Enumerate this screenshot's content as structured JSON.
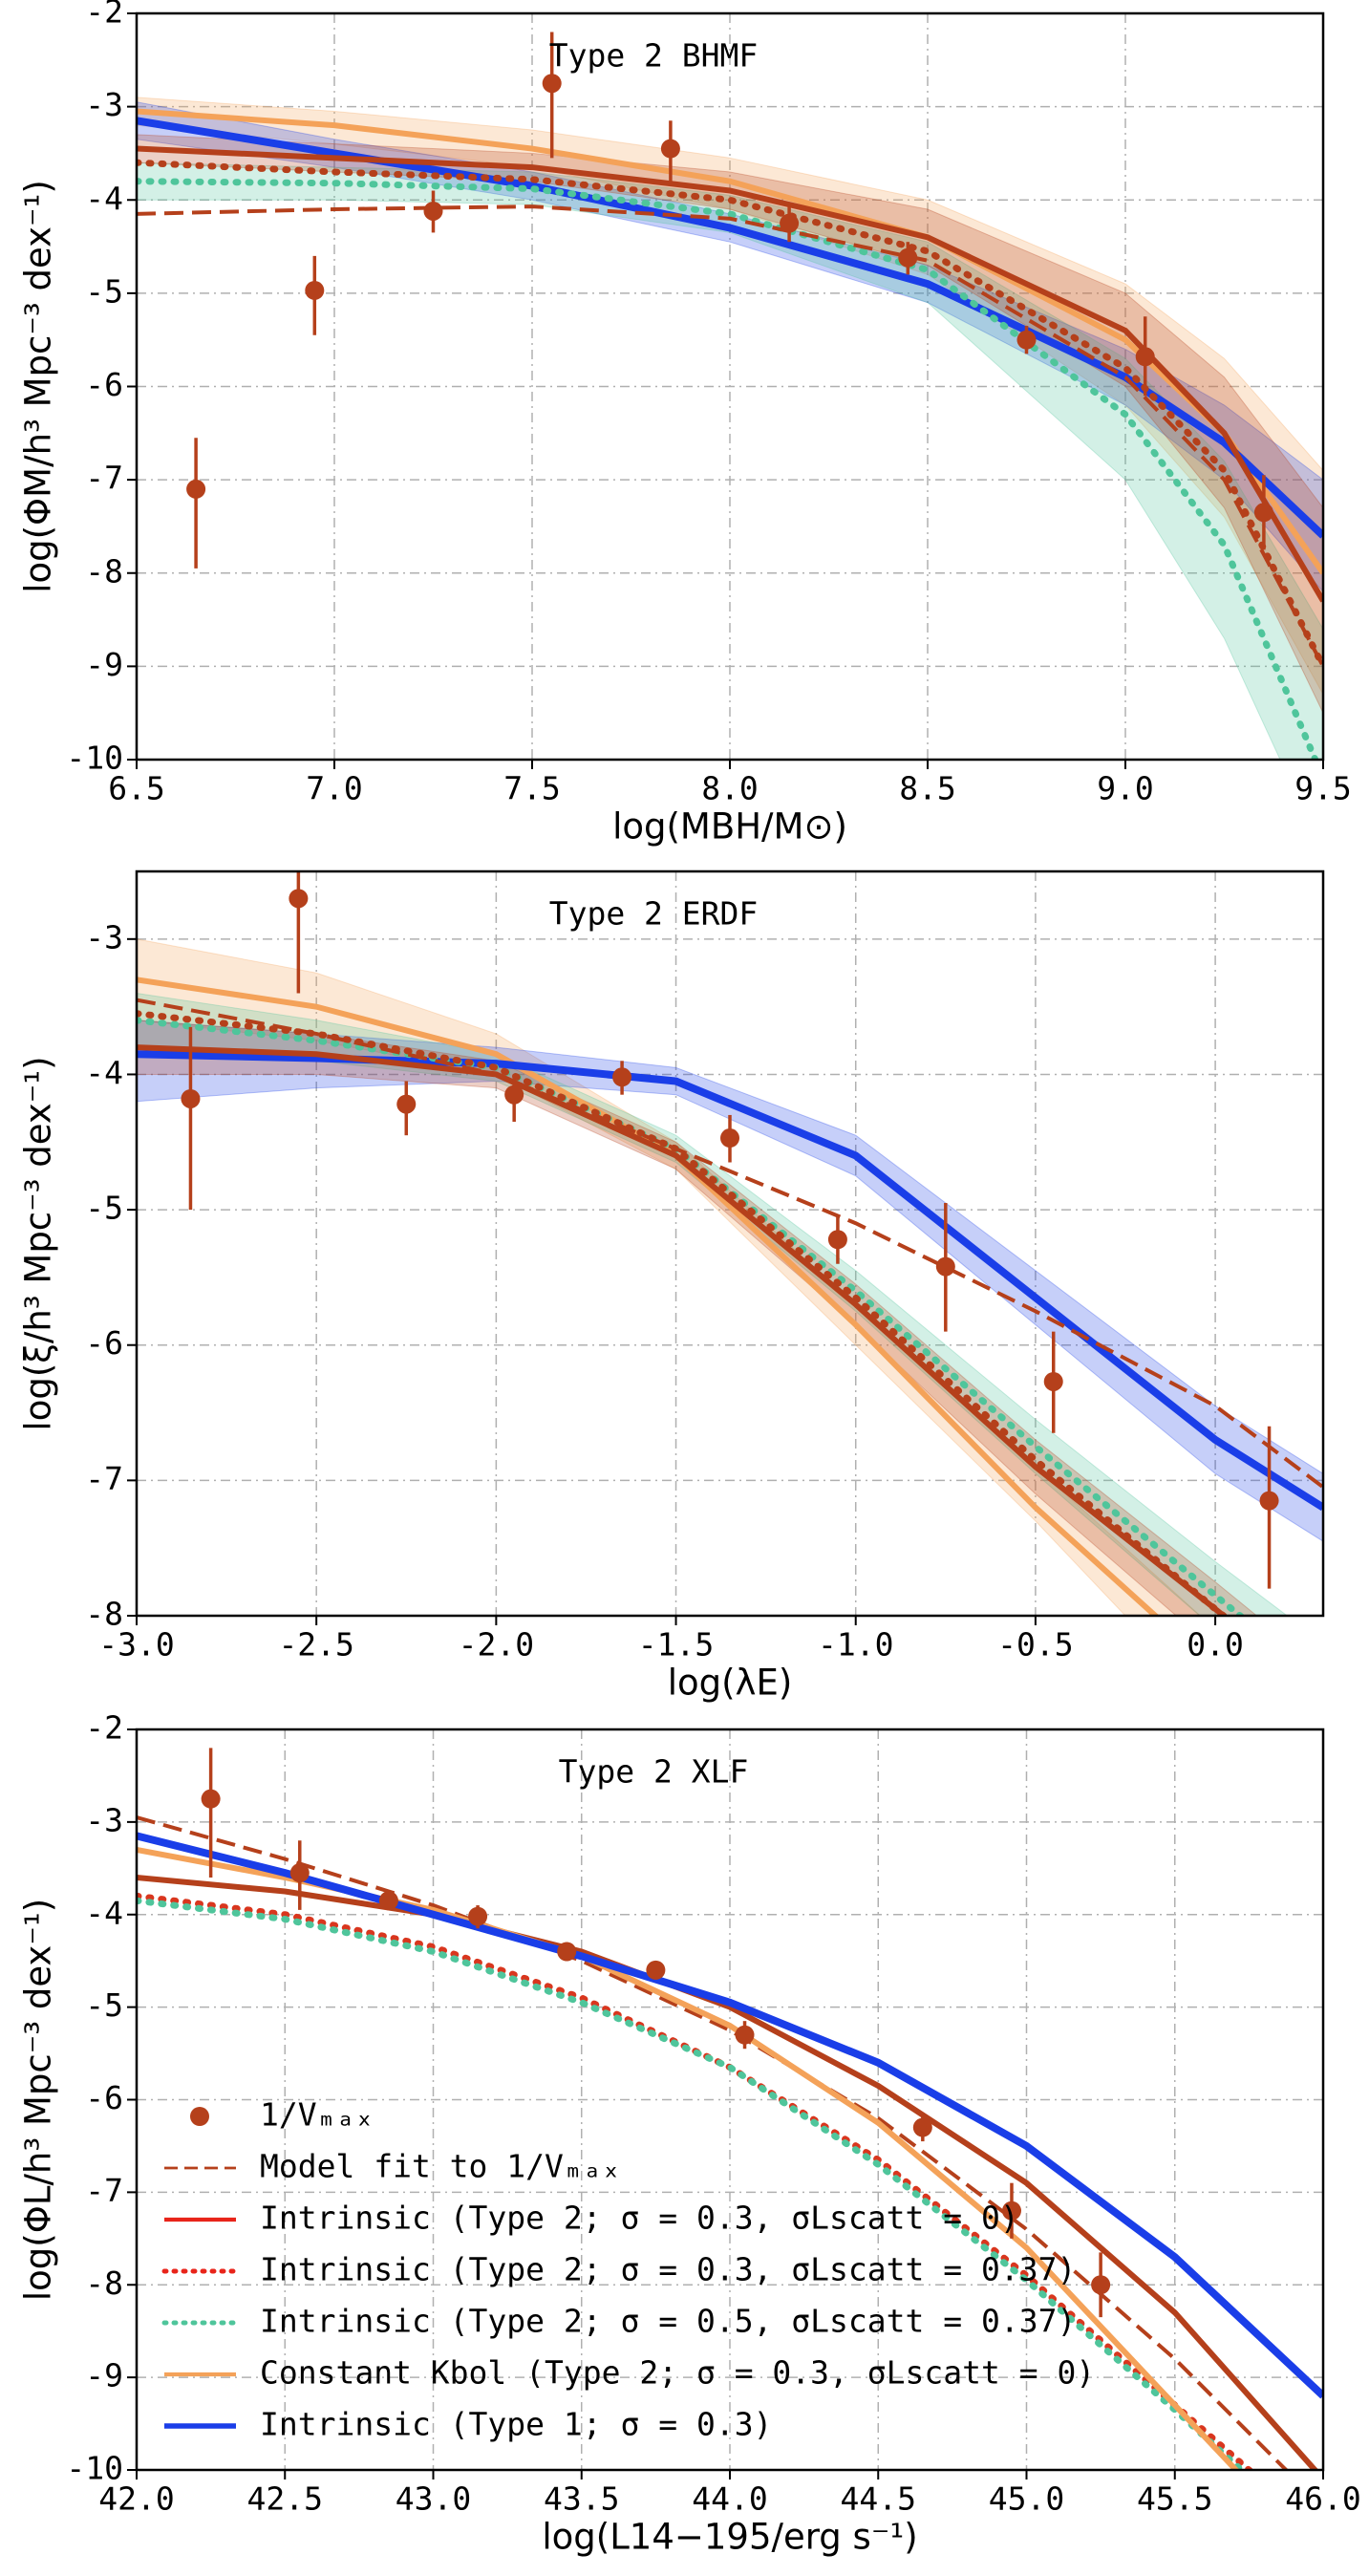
{
  "chart_data": [
    {
      "type": "line",
      "title": "Type 2 BHMF",
      "xlabel": "log(MBH/M⊙)",
      "ylabel": "log(ΦM/h³ Mpc⁻³ dex⁻¹)",
      "xlim": [
        6.5,
        9.5
      ],
      "ylim": [
        -10,
        -2
      ],
      "grid": true,
      "xticks": [
        6.5,
        {
          "value": 7,
          "label": "7.0"
        },
        7.5,
        {
          "value": 8,
          "label": "8.0"
        },
        8.5,
        {
          "value": 9,
          "label": "9.0"
        },
        9.5
      ],
      "yticks": [
        -10,
        -9,
        -8,
        -7,
        -6,
        -5,
        -4,
        -3,
        -2
      ],
      "x": [
        6.5,
        7.0,
        7.5,
        8.0,
        8.5,
        9.0,
        9.25,
        9.5
      ],
      "series": [
        {
          "color": "#f4a259",
          "dash": "solid",
          "width": 6,
          "values": [
            -3.05,
            -3.2,
            -3.45,
            -3.8,
            -4.4,
            -5.5,
            -6.5,
            -8.0
          ],
          "lower": [
            -3.2,
            -3.4,
            -3.65,
            -4.1,
            -4.8,
            -6.2,
            -7.4,
            -9.3
          ],
          "upper": [
            -2.9,
            -3.05,
            -3.25,
            -3.55,
            -4.0,
            -4.9,
            -5.7,
            -6.9
          ]
        },
        {
          "color": "#1a3ee8",
          "dash": "solid",
          "width": 8,
          "values": [
            -3.15,
            -3.5,
            -3.85,
            -4.3,
            -4.9,
            -5.9,
            -6.6,
            -7.6
          ],
          "lower": [
            -3.35,
            -3.65,
            -4.0,
            -4.45,
            -5.1,
            -6.2,
            -7.0,
            -8.2
          ],
          "upper": [
            -2.95,
            -3.35,
            -3.7,
            -4.15,
            -4.7,
            -5.6,
            -6.2,
            -7.0
          ]
        },
        {
          "color": "#4fc59b",
          "dash": "dotted",
          "width": 7,
          "values": [
            -3.8,
            -3.82,
            -3.88,
            -4.15,
            -4.75,
            -6.3,
            -7.7,
            -10.2
          ],
          "lower": [
            -4.0,
            -4.0,
            -4.05,
            -4.35,
            -5.1,
            -7.0,
            -8.7,
            -11
          ],
          "upper": [
            -3.6,
            -3.65,
            -3.7,
            -3.95,
            -4.45,
            -5.7,
            -6.8,
            -8.6
          ]
        },
        {
          "color": "#b5401b",
          "dash": "dotted",
          "width": 7,
          "values": [
            -3.6,
            -3.7,
            -3.78,
            -4.0,
            -4.55,
            -5.8,
            -6.9,
            -9.0
          ]
        },
        {
          "color": "#b5401b",
          "dash": "dashed",
          "width": 4,
          "values": [
            -4.15,
            -4.1,
            -4.07,
            -4.2,
            -4.65,
            -5.9,
            -7.0,
            -9.0
          ]
        },
        {
          "color": "#b5401b",
          "dash": "solid",
          "width": 6,
          "values": [
            -3.45,
            -3.55,
            -3.65,
            -3.9,
            -4.4,
            -5.4,
            -6.5,
            -8.3
          ],
          "lower": [
            -3.6,
            -3.7,
            -3.8,
            -4.1,
            -4.7,
            -6.0,
            -7.3,
            -9.5
          ],
          "upper": [
            -3.3,
            -3.4,
            -3.5,
            -3.7,
            -4.1,
            -5.0,
            -5.9,
            -7.3
          ]
        }
      ],
      "points": {
        "color": "#b5401b",
        "x": [
          6.65,
          6.95,
          7.25,
          7.55,
          7.85,
          8.15,
          8.45,
          8.75,
          9.05,
          9.35
        ],
        "values": [
          -7.1,
          -4.97,
          -4.12,
          -2.75,
          -3.45,
          -4.25,
          -4.62,
          -5.5,
          -5.68,
          -7.35
        ],
        "yerr_low": [
          0.85,
          0.48,
          0.23,
          0.8,
          0.35,
          0.2,
          0.18,
          0.15,
          0.42,
          0.4
        ],
        "yerr_high": [
          0.55,
          0.37,
          0.22,
          0.55,
          0.3,
          0.2,
          0.17,
          0.15,
          0.43,
          0.4
        ]
      }
    },
    {
      "type": "line",
      "title": "Type 2 ERDF",
      "xlabel": "log(λE)",
      "ylabel": "log(ξ/h³ Mpc⁻³ dex⁻¹)",
      "xlim": [
        -3,
        0.3
      ],
      "ylim": [
        -8,
        -2.5
      ],
      "grid": true,
      "xticks": [
        {
          "value": -3,
          "label": "-3.0"
        },
        -2.5,
        {
          "value": -2,
          "label": "-2.0"
        },
        -1.5,
        {
          "value": -1,
          "label": "-1.0"
        },
        -0.5,
        {
          "value": 0,
          "label": "0.0"
        }
      ],
      "yticks": [
        -8,
        -7,
        -6,
        -5,
        -4,
        -3
      ],
      "x": [
        -3,
        -2.5,
        -2,
        -1.5,
        -1,
        -0.5,
        0,
        0.3
      ],
      "series": [
        {
          "color": "#f4a259",
          "dash": "solid",
          "width": 6,
          "values": [
            -3.3,
            -3.5,
            -3.85,
            -4.6,
            -5.85,
            -7.2,
            -8.4,
            -9.1
          ],
          "lower": [
            -3.6,
            -3.75,
            -4.0,
            -4.7,
            -6.0,
            -7.3,
            -8.7,
            -9.5
          ],
          "upper": [
            -3.0,
            -3.25,
            -3.7,
            -4.5,
            -5.7,
            -6.9,
            -8.1,
            -8.8
          ]
        },
        {
          "color": "#1a3ee8",
          "dash": "solid",
          "width": 8,
          "values": [
            -3.85,
            -3.88,
            -3.92,
            -4.05,
            -4.6,
            -5.65,
            -6.7,
            -7.2
          ],
          "lower": [
            -4.2,
            -4.1,
            -4.05,
            -4.15,
            -4.75,
            -5.85,
            -6.95,
            -7.45
          ],
          "upper": [
            -3.6,
            -3.7,
            -3.8,
            -3.95,
            -4.45,
            -5.45,
            -6.45,
            -6.95
          ]
        },
        {
          "color": "#4fc59b",
          "dash": "dotted",
          "width": 7,
          "values": [
            -3.6,
            -3.75,
            -3.95,
            -4.55,
            -5.6,
            -6.75,
            -7.85,
            -8.5
          ],
          "lower": [
            -3.8,
            -3.9,
            -4.05,
            -4.65,
            -5.75,
            -6.95,
            -8.1,
            -8.8
          ],
          "upper": [
            -3.4,
            -3.6,
            -3.85,
            -4.45,
            -5.45,
            -6.55,
            -7.6,
            -8.2
          ]
        },
        {
          "color": "#b5401b",
          "dash": "dotted",
          "width": 7,
          "values": [
            -3.55,
            -3.7,
            -3.95,
            -4.55,
            -5.65,
            -6.85,
            -7.95,
            -8.6
          ]
        },
        {
          "color": "#b5401b",
          "dash": "dashed",
          "width": 4,
          "values": [
            -3.45,
            -3.7,
            -4.0,
            -4.55,
            -5.1,
            -5.75,
            -6.45,
            -7.05
          ]
        },
        {
          "color": "#b5401b",
          "dash": "solid",
          "width": 6,
          "values": [
            -3.8,
            -3.85,
            -4.0,
            -4.6,
            -5.7,
            -6.9,
            -7.95,
            -8.6
          ],
          "lower": [
            -4.0,
            -4.0,
            -4.1,
            -4.7,
            -5.85,
            -7.1,
            -8.25,
            -8.9
          ],
          "upper": [
            -3.6,
            -3.7,
            -3.9,
            -4.5,
            -5.55,
            -6.7,
            -7.75,
            -8.4
          ]
        }
      ],
      "points": {
        "color": "#b5401b",
        "x": [
          -2.85,
          -2.55,
          -2.25,
          -1.95,
          -1.65,
          -1.35,
          -1.05,
          -0.75,
          -0.45,
          0.15
        ],
        "values": [
          -4.18,
          -2.7,
          -4.22,
          -4.15,
          -4.02,
          -4.47,
          -5.22,
          -5.42,
          -6.27,
          -7.15
        ],
        "yerr_low": [
          0.82,
          0.7,
          0.23,
          0.2,
          0.13,
          0.18,
          0.18,
          0.48,
          0.38,
          0.65
        ],
        "yerr_high": [
          0.53,
          0.4,
          0.17,
          0.15,
          0.12,
          0.17,
          0.17,
          0.47,
          0.37,
          0.55
        ]
      }
    },
    {
      "type": "line",
      "title": "Type 2 XLF",
      "xlabel": "log(L14−195/erg s⁻¹)",
      "ylabel": "log(ΦL/h³ Mpc⁻³ dex⁻¹)",
      "xlim": [
        42,
        46
      ],
      "ylim": [
        -10,
        -2
      ],
      "grid": true,
      "legend": "lower left",
      "xticks": [
        {
          "value": 42,
          "label": "42.0"
        },
        42.5,
        {
          "value": 43,
          "label": "43.0"
        },
        43.5,
        {
          "value": 44,
          "label": "44.0"
        },
        44.5,
        {
          "value": 45,
          "label": "45.0"
        },
        45.5,
        {
          "value": 46,
          "label": "46.0"
        }
      ],
      "yticks": [
        -10,
        -9,
        -8,
        -7,
        -6,
        -5,
        -4,
        -3,
        -2
      ],
      "x": [
        42,
        42.5,
        43,
        43.5,
        44,
        44.5,
        45,
        45.5,
        46
      ],
      "points": {
        "name": "1/Vₘₐₓ",
        "color": "#b5401b",
        "x": [
          42.25,
          42.55,
          42.85,
          43.15,
          43.45,
          43.75,
          44.05,
          44.65,
          44.95,
          45.25
        ],
        "values": [
          -2.75,
          -3.55,
          -3.85,
          -4.02,
          -4.4,
          -4.6,
          -5.3,
          -6.3,
          -7.2,
          -8.0
        ],
        "yerr_low": [
          0.85,
          0.4,
          0.1,
          0.13,
          0.1,
          0.1,
          0.15,
          0.15,
          0.3,
          0.35
        ],
        "yerr_high": [
          0.55,
          0.35,
          0.1,
          0.12,
          0.1,
          0.1,
          0.15,
          0.15,
          0.3,
          0.35
        ]
      },
      "series": [
        {
          "name": "Model fit to 1/Vₘₐₓ",
          "color": "#b5401b",
          "dash": "dashed",
          "width": 4,
          "values": [
            -2.95,
            -3.4,
            -3.9,
            -4.5,
            -5.25,
            -6.2,
            -7.4,
            -8.8,
            -10.4
          ]
        },
        {
          "name": "Intrinsic (Type 2; σ = 0.3, σLscatt = 0)",
          "color": "#b5401b",
          "legend_color": "#e8241a",
          "dash": "solid",
          "width": 6,
          "values": [
            -3.6,
            -3.75,
            -4.0,
            -4.4,
            -5.0,
            -5.85,
            -6.9,
            -8.3,
            -10.1
          ]
        },
        {
          "name": "Intrinsic (Type 2; σ = 0.3, σLscatt = 0.37)",
          "color": "#d9361e",
          "legend_color": "#e8241a",
          "dash": "dotted",
          "width": 7,
          "values": [
            -3.8,
            -4.0,
            -4.35,
            -4.9,
            -5.65,
            -6.65,
            -7.9,
            -9.3,
            -10.7
          ]
        },
        {
          "name": "Intrinsic (Type 2; σ = 0.5, σLscatt = 0.37)",
          "color": "#4fc59b",
          "dash": "dotted",
          "width": 7,
          "values": [
            -3.85,
            -4.05,
            -4.4,
            -4.95,
            -5.65,
            -6.7,
            -7.95,
            -9.35,
            -10.8
          ]
        },
        {
          "name": "Constant Kbol (Type 2; σ = 0.3, σLscatt = 0)",
          "color": "#f4a259",
          "dash": "solid",
          "width": 6,
          "values": [
            -3.3,
            -3.6,
            -3.95,
            -4.45,
            -5.2,
            -6.25,
            -7.6,
            -9.3,
            -11
          ]
        },
        {
          "name": "Intrinsic (Type 1; σ = 0.3)",
          "color": "#1a3ee8",
          "dash": "solid",
          "width": 8,
          "values": [
            -3.15,
            -3.55,
            -4.0,
            -4.45,
            -4.95,
            -5.6,
            -6.5,
            -7.7,
            -9.2
          ]
        }
      ]
    }
  ]
}
